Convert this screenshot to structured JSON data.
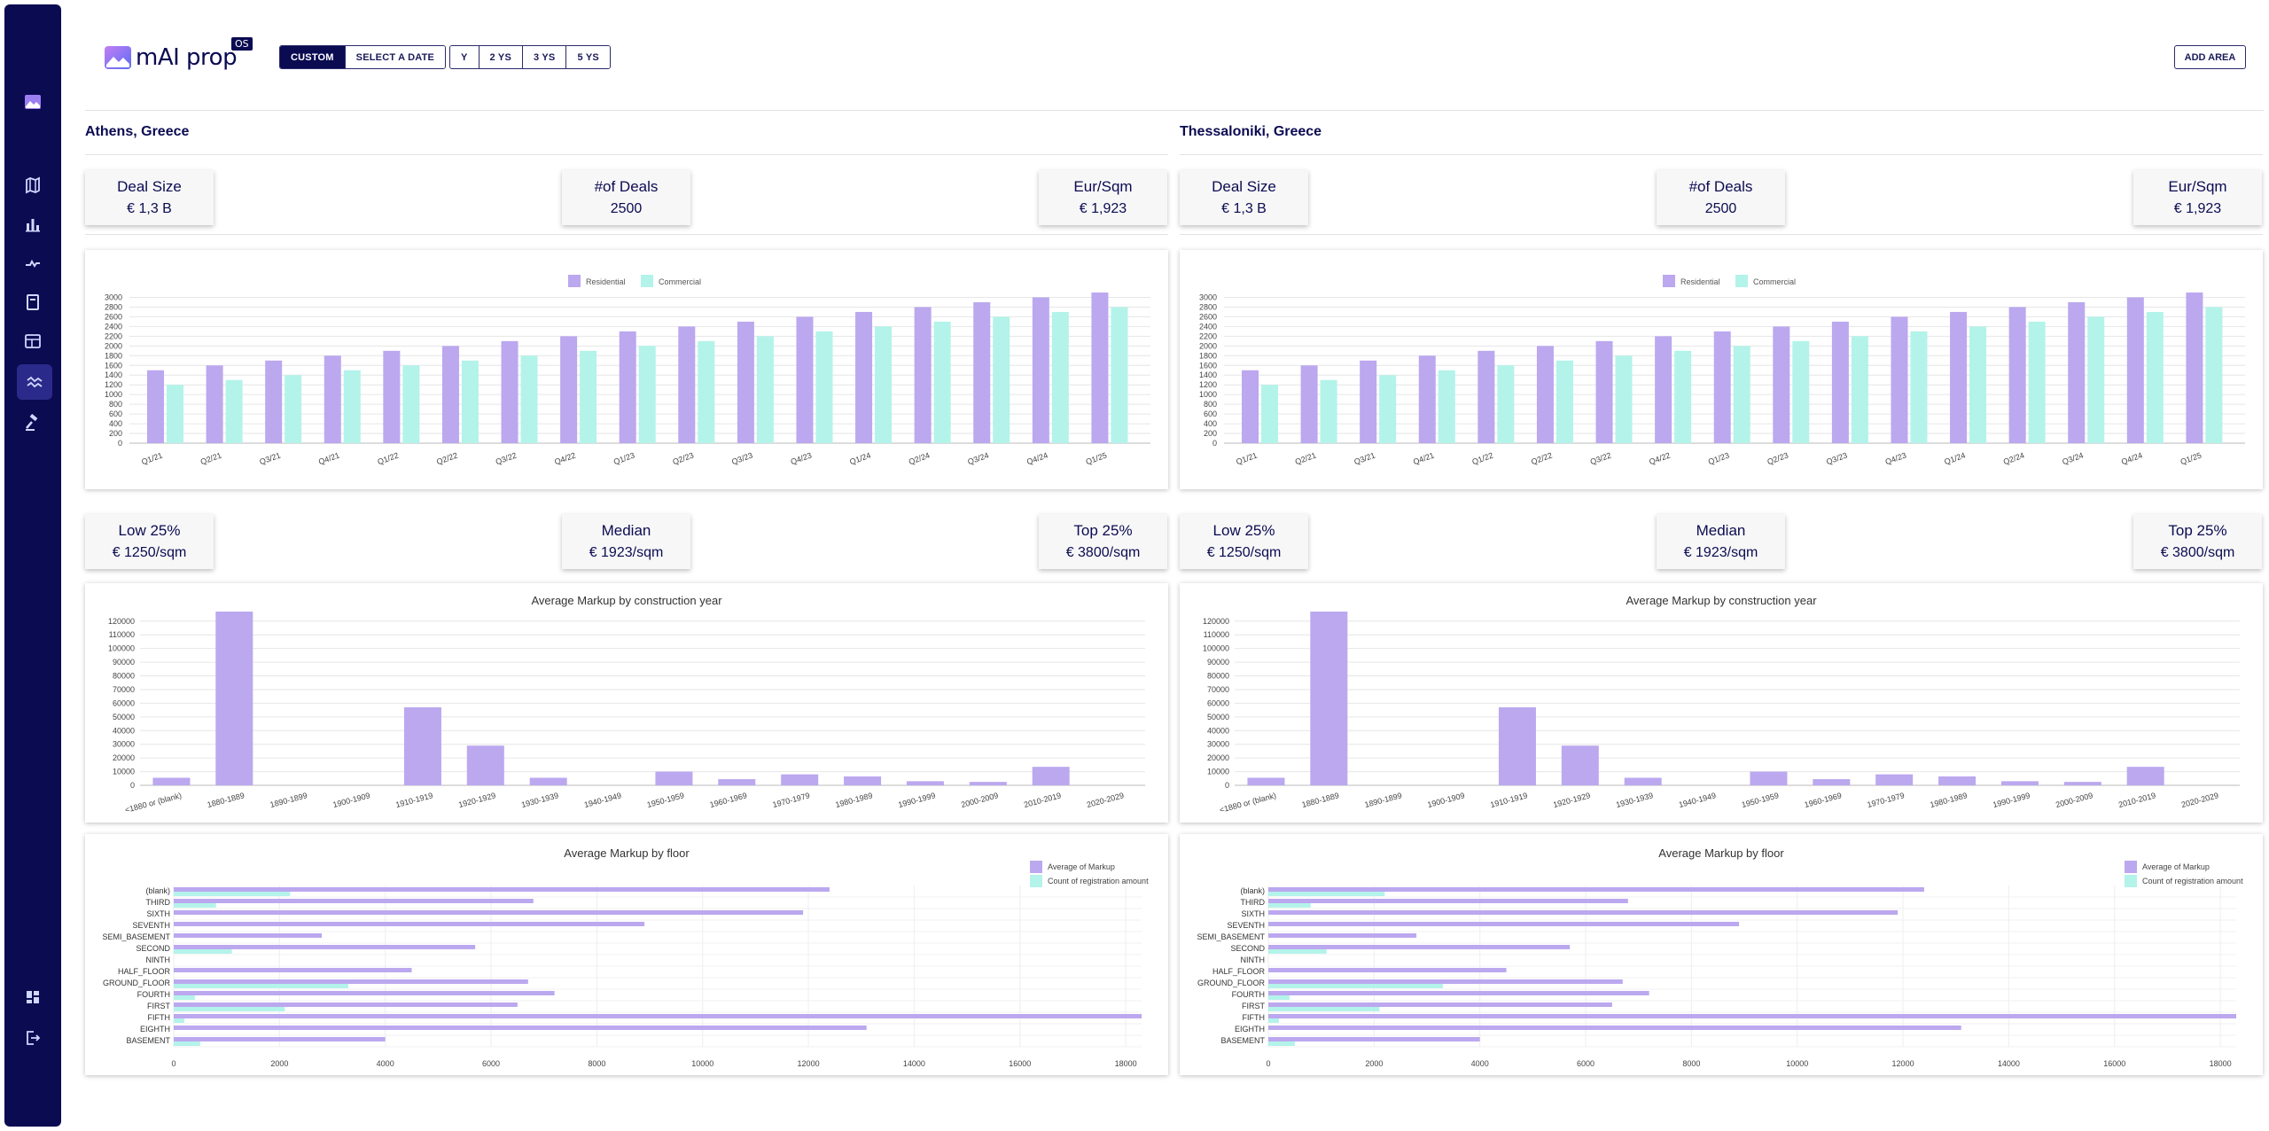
{
  "header": {
    "logo_text": "mAI prop",
    "logo_badge": "OS",
    "range_buttons": [
      "CUSTOM",
      "SELECT A DATE"
    ],
    "period_buttons": [
      "Y",
      "2 YS",
      "3 YS",
      "5 YS"
    ],
    "add_area_label": "ADD AREA"
  },
  "sidebar": {
    "top_icon": "app-logo-icon",
    "items": [
      "map-icon",
      "bar-chart-icon",
      "trend-icon",
      "book-icon",
      "table-icon",
      "wave-chart-icon",
      "auction-icon"
    ],
    "active_index": 5,
    "bottom_items": [
      "dashboard-icon",
      "logout-icon"
    ]
  },
  "colors": {
    "navy": "#0b0b52",
    "residential": "#bba8ef",
    "commercial": "#b3f3ea"
  },
  "panels": [
    {
      "city": "Athens, Greece",
      "stats_top": [
        {
          "title": "Deal Size",
          "value": "€ 1,3 B"
        },
        {
          "title": "#of Deals",
          "value": "2500"
        },
        {
          "title": "Eur/Sqm",
          "value": "€ 1,923"
        }
      ],
      "stats_mid": [
        {
          "title": "Low 25%",
          "value": "€ 1250/sqm"
        },
        {
          "title": "Median",
          "value": "€ 1923/sqm"
        },
        {
          "title": "Top 25%",
          "value": "€ 3800/sqm"
        }
      ]
    },
    {
      "city": "Thessaloniki, Greece",
      "stats_top": [
        {
          "title": "Deal Size",
          "value": "€ 1,3 B"
        },
        {
          "title": "#of Deals",
          "value": "2500"
        },
        {
          "title": "Eur/Sqm",
          "value": "€ 1,923"
        }
      ],
      "stats_mid": [
        {
          "title": "Low 25%",
          "value": "€ 1250/sqm"
        },
        {
          "title": "Median",
          "value": "€ 1923/sqm"
        },
        {
          "title": "Top 25%",
          "value": "€ 3800/sqm"
        }
      ]
    }
  ],
  "chart_data": [
    {
      "type": "bar",
      "title": "",
      "categories": [
        "Q1/21",
        "Q2/21",
        "Q3/21",
        "Q4/21",
        "Q1/22",
        "Q2/22",
        "Q3/22",
        "Q4/22",
        "Q1/23",
        "Q2/23",
        "Q3/23",
        "Q4/23",
        "Q1/24",
        "Q2/24",
        "Q3/24",
        "Q4/24",
        "Q1/25"
      ],
      "series": [
        {
          "name": "Residential",
          "values": [
            1500,
            1600,
            1700,
            1800,
            1900,
            2000,
            2100,
            2200,
            2300,
            2400,
            2500,
            2600,
            2700,
            2800,
            2900,
            3000,
            3100
          ]
        },
        {
          "name": "Commercial",
          "values": [
            1200,
            1300,
            1400,
            1500,
            1600,
            1700,
            1800,
            1900,
            2000,
            2100,
            2200,
            2300,
            2400,
            2500,
            2600,
            2700,
            2800
          ]
        }
      ],
      "yticks": [
        0,
        200,
        400,
        600,
        800,
        1000,
        1200,
        1400,
        1600,
        1800,
        2000,
        2200,
        2400,
        2600,
        2800,
        3000
      ],
      "ylim": [
        0,
        3100
      ],
      "legend": "top-center",
      "grid": true
    },
    {
      "type": "bar",
      "title": "Average Markup by construction year",
      "categories": [
        "<1880 or (blank)",
        "1880-1889",
        "1890-1899",
        "1900-1909",
        "1910-1919",
        "1920-1929",
        "1930-1939",
        "1940-1949",
        "1950-1959",
        "1960-1969",
        "1970-1979",
        "1980-1989",
        "1990-1999",
        "2000-2009",
        "2010-2019",
        "2020-2029"
      ],
      "values": [
        5500,
        127000,
        0,
        0,
        57000,
        29000,
        5500,
        0,
        10000,
        4500,
        8000,
        6500,
        3000,
        2500,
        13500,
        0
      ],
      "yticks": [
        0,
        10000,
        20000,
        30000,
        40000,
        50000,
        60000,
        70000,
        80000,
        90000,
        100000,
        110000,
        120000
      ],
      "ylim": [
        0,
        127000
      ],
      "grid": true
    },
    {
      "type": "bar",
      "orientation": "horizontal",
      "title": "Average Markup by floor",
      "categories": [
        "(blank)",
        "THIRD",
        "SIXTH",
        "SEVENTH",
        "SEMI_BASEMENT",
        "SECOND",
        "NINTH",
        "HALF_FLOOR",
        "GROUND_FLOOR",
        "FOURTH",
        "FIRST",
        "FIFTH",
        "EIGHTH",
        "BASEMENT"
      ],
      "series": [
        {
          "name": "Average of Markup",
          "values": [
            12400,
            6800,
            11900,
            8900,
            2800,
            5700,
            0,
            4500,
            6700,
            7200,
            6500,
            18300,
            13100,
            4000
          ]
        },
        {
          "name": "Count of registration amount",
          "values": [
            2200,
            800,
            0,
            0,
            0,
            1100,
            0,
            0,
            3300,
            400,
            2100,
            200,
            0,
            500
          ]
        }
      ],
      "xticks": [
        0,
        2000,
        4000,
        6000,
        8000,
        10000,
        12000,
        14000,
        16000,
        18000
      ],
      "xlim": [
        0,
        18300
      ],
      "legend": "top-right",
      "grid": true
    }
  ]
}
